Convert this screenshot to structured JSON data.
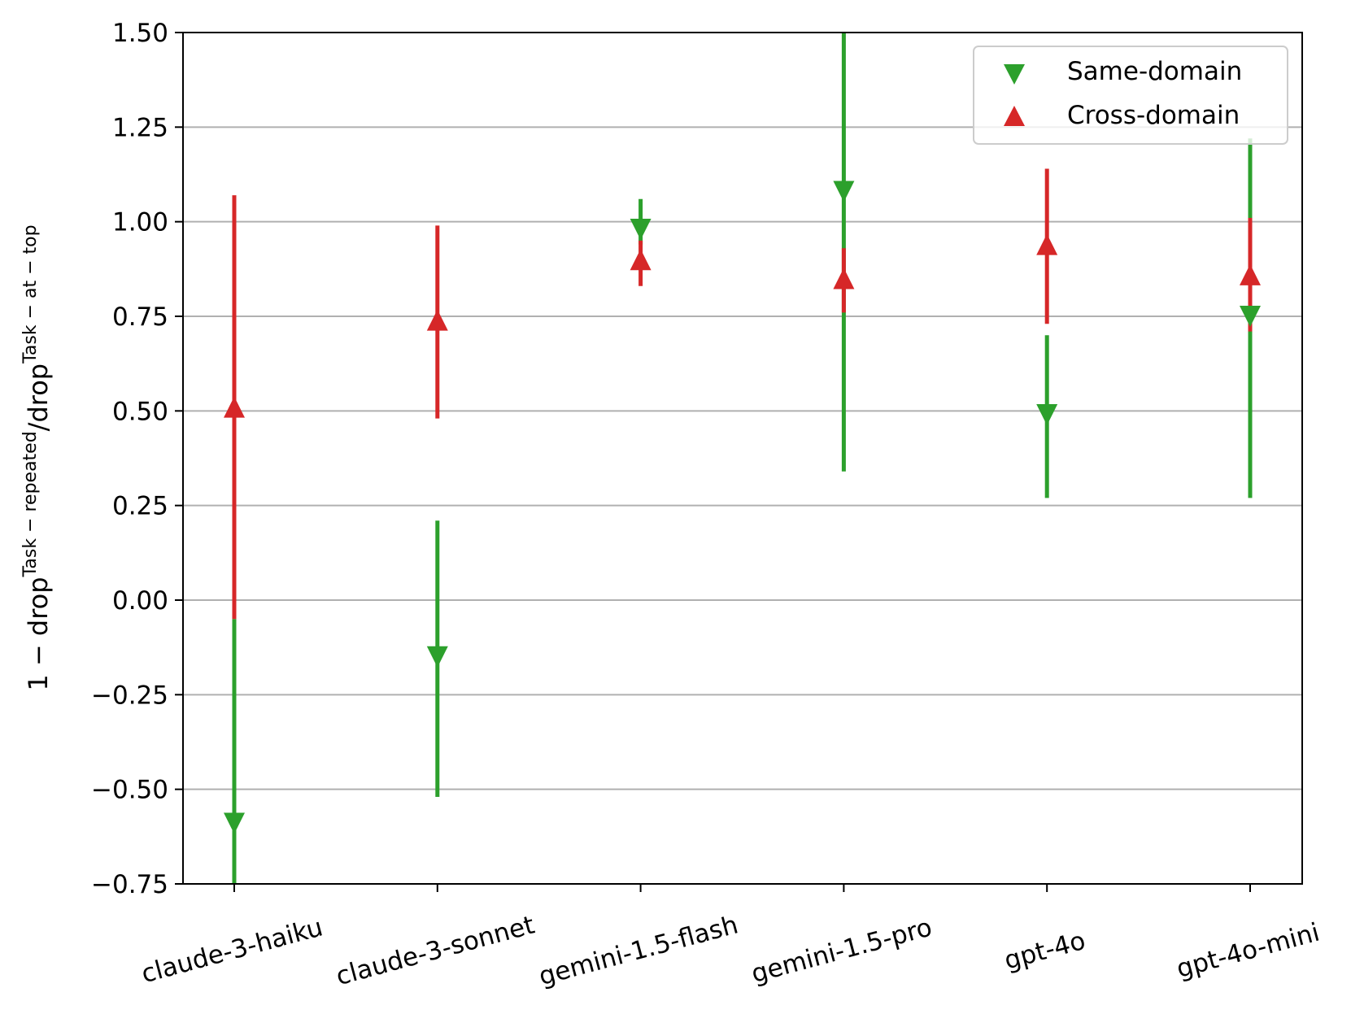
{
  "chart_data": {
    "type": "scatter",
    "title": "",
    "xlabel": "",
    "ylabel": {
      "base": "1 − drop",
      "sup1": "Task − repeated",
      "mid": "/drop",
      "sup2": "Task − at − top"
    },
    "ylim": [
      -0.75,
      1.5
    ],
    "yticks": [
      -0.75,
      -0.5,
      -0.25,
      0.0,
      0.25,
      0.5,
      0.75,
      1.0,
      1.25,
      1.5
    ],
    "ytick_labels": [
      "−0.75",
      "−0.50",
      "−0.25",
      "0.00",
      "0.25",
      "0.50",
      "0.75",
      "1.00",
      "1.25",
      "1.50"
    ],
    "categories": [
      "claude-3-haiku",
      "claude-3-sonnet",
      "gemini-1.5-flash",
      "gemini-1.5-pro",
      "gpt-4o",
      "gpt-4o-mini"
    ],
    "grid": "horizontal",
    "legend_position": "top-right",
    "series": [
      {
        "name": "Same-domain",
        "marker": "triangle-down",
        "color": "#2ca02c",
        "values": [
          -0.59,
          -0.15,
          0.98,
          1.08,
          0.49,
          0.75
        ],
        "err_low": [
          -0.75,
          -0.52,
          0.94,
          0.34,
          0.27,
          0.27
        ],
        "err_high": [
          -0.05,
          0.21,
          1.06,
          1.5,
          0.7,
          1.22
        ]
      },
      {
        "name": "Cross-domain",
        "marker": "triangle-up",
        "color": "#d62728",
        "values": [
          0.51,
          0.74,
          0.9,
          0.85,
          0.94,
          0.86
        ],
        "err_low": [
          -0.05,
          0.48,
          0.83,
          0.76,
          0.73,
          0.71
        ],
        "err_high": [
          1.07,
          0.99,
          0.95,
          0.93,
          1.14,
          1.01
        ]
      }
    ]
  }
}
